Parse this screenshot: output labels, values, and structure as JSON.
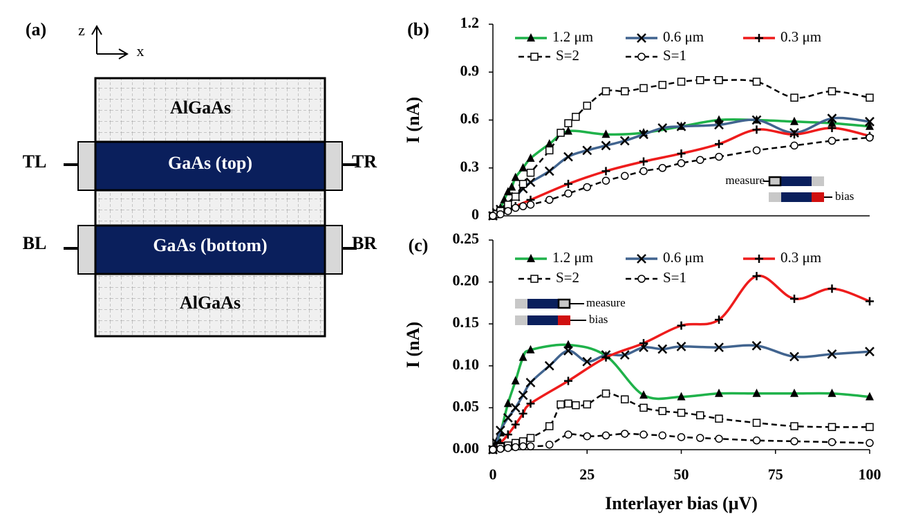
{
  "diagram": {
    "panel": "(a)",
    "axis_z": "z",
    "axis_x": "x",
    "layers": [
      "AlGaAs",
      "GaAs (top)",
      "GaAs (bottom)",
      "AlGaAs"
    ],
    "contacts": [
      "TL",
      "TR",
      "BL",
      "BR"
    ]
  },
  "chart_data": [
    {
      "type": "line",
      "panel": "(b)",
      "ylabel": "I (nA)",
      "xlim": [
        0,
        100
      ],
      "ylim": [
        0,
        1.2
      ],
      "yticks": [
        0,
        0.3,
        0.6,
        0.9,
        1.2
      ],
      "annotations": [
        "measure",
        "bias"
      ],
      "series": [
        {
          "name": "1.2 μm",
          "color": "#1fb24a",
          "marker": "triangle",
          "dashed": false,
          "x": [
            0,
            1,
            2,
            3,
            4,
            5,
            6,
            8,
            10,
            15,
            20,
            30,
            40,
            50,
            60,
            70,
            80,
            90,
            100
          ],
          "values": [
            0,
            0.02,
            0.05,
            0.1,
            0.15,
            0.18,
            0.24,
            0.3,
            0.36,
            0.45,
            0.53,
            0.51,
            0.52,
            0.56,
            0.6,
            0.6,
            0.59,
            0.58,
            0.56
          ]
        },
        {
          "name": "0.6 μm",
          "color": "#41648f",
          "marker": "x",
          "dashed": false,
          "x": [
            0,
            1,
            2,
            4,
            6,
            8,
            10,
            15,
            20,
            25,
            30,
            35,
            40,
            45,
            50,
            60,
            70,
            80,
            90,
            100
          ],
          "values": [
            0,
            0.02,
            0.04,
            0.08,
            0.12,
            0.17,
            0.21,
            0.28,
            0.37,
            0.41,
            0.44,
            0.47,
            0.51,
            0.55,
            0.56,
            0.57,
            0.6,
            0.52,
            0.61,
            0.59
          ]
        },
        {
          "name": "0.3 μm",
          "color": "#ee1c1c",
          "marker": "plus",
          "dashed": false,
          "x": [
            0,
            2,
            4,
            6,
            10,
            20,
            30,
            40,
            50,
            60,
            70,
            80,
            90,
            100
          ],
          "values": [
            0,
            0.02,
            0.04,
            0.06,
            0.1,
            0.2,
            0.28,
            0.34,
            0.39,
            0.45,
            0.54,
            0.51,
            0.55,
            0.5
          ]
        },
        {
          "name": "S=2",
          "color": "#000000",
          "marker": "square",
          "dashed": true,
          "x": [
            0,
            1,
            2,
            4,
            6,
            8,
            10,
            15,
            18,
            20,
            22,
            25,
            30,
            35,
            40,
            45,
            50,
            55,
            60,
            70,
            80,
            90,
            100
          ],
          "values": [
            0,
            0.01,
            0.03,
            0.07,
            0.12,
            0.2,
            0.27,
            0.41,
            0.52,
            0.58,
            0.62,
            0.69,
            0.78,
            0.78,
            0.8,
            0.82,
            0.84,
            0.85,
            0.85,
            0.84,
            0.74,
            0.78,
            0.74
          ]
        },
        {
          "name": "S=1",
          "color": "#000000",
          "marker": "circle",
          "dashed": true,
          "x": [
            0,
            2,
            4,
            6,
            8,
            10,
            15,
            20,
            25,
            30,
            35,
            40,
            45,
            50,
            55,
            60,
            70,
            80,
            90,
            100
          ],
          "values": [
            0,
            0.01,
            0.03,
            0.05,
            0.06,
            0.07,
            0.1,
            0.14,
            0.18,
            0.22,
            0.25,
            0.28,
            0.3,
            0.33,
            0.35,
            0.37,
            0.41,
            0.44,
            0.47,
            0.49
          ]
        }
      ]
    },
    {
      "type": "line",
      "panel": "(c)",
      "ylabel": "I (nA)",
      "xlabel": "Interlayer bias (μV)",
      "xlim": [
        0,
        100
      ],
      "xticks": [
        0,
        25,
        50,
        75,
        100
      ],
      "ylim": [
        0,
        0.25
      ],
      "yticks": [
        {
          "value": 0,
          "label": "0.00"
        },
        {
          "value": 0.05,
          "label": "0.05"
        },
        {
          "value": 0.1,
          "label": "0.10"
        },
        {
          "value": 0.15,
          "label": "0.15"
        },
        {
          "value": 0.2,
          "label": "0.20"
        },
        {
          "value": 0.25,
          "label": "0.25"
        }
      ],
      "annotations": [
        "measure",
        "bias"
      ],
      "series": [
        {
          "name": "1.2 μm",
          "color": "#1fb24a",
          "marker": "triangle",
          "dashed": false,
          "x": [
            0,
            1,
            2,
            4,
            6,
            8,
            10,
            20,
            30,
            40,
            50,
            60,
            70,
            80,
            90,
            100
          ],
          "values": [
            0,
            0.01,
            0.02,
            0.055,
            0.082,
            0.11,
            0.119,
            0.125,
            0.112,
            0.065,
            0.063,
            0.067,
            0.067,
            0.067,
            0.067,
            0.063
          ]
        },
        {
          "name": "0.6 μm",
          "color": "#41648f",
          "marker": "x",
          "dashed": false,
          "x": [
            0,
            1,
            2,
            4,
            6,
            8,
            10,
            15,
            20,
            25,
            30,
            35,
            40,
            45,
            50,
            60,
            70,
            80,
            90,
            100
          ],
          "values": [
            0,
            0.008,
            0.023,
            0.038,
            0.05,
            0.065,
            0.08,
            0.1,
            0.118,
            0.105,
            0.113,
            0.113,
            0.122,
            0.12,
            0.123,
            0.122,
            0.124,
            0.111,
            0.114,
            0.117
          ]
        },
        {
          "name": "0.3 μm",
          "color": "#ee1c1c",
          "marker": "plus",
          "dashed": false,
          "x": [
            0,
            2,
            4,
            6,
            8,
            10,
            20,
            30,
            40,
            50,
            60,
            70,
            80,
            90,
            100
          ],
          "values": [
            0,
            0.008,
            0.018,
            0.03,
            0.043,
            0.055,
            0.082,
            0.11,
            0.127,
            0.148,
            0.155,
            0.207,
            0.18,
            0.192,
            0.177
          ]
        },
        {
          "name": "S=2",
          "color": "#000000",
          "marker": "square",
          "dashed": true,
          "x": [
            0,
            2,
            4,
            6,
            8,
            10,
            15,
            18,
            20,
            22,
            25,
            30,
            35,
            40,
            45,
            50,
            55,
            60,
            70,
            80,
            90,
            100
          ],
          "values": [
            0,
            0.003,
            0.005,
            0.008,
            0.01,
            0.014,
            0.028,
            0.054,
            0.055,
            0.053,
            0.054,
            0.067,
            0.06,
            0.05,
            0.046,
            0.044,
            0.041,
            0.037,
            0.032,
            0.028,
            0.027,
            0.027
          ]
        },
        {
          "name": "S=1",
          "color": "#000000",
          "marker": "circle",
          "dashed": true,
          "x": [
            0,
            2,
            4,
            6,
            8,
            10,
            15,
            20,
            25,
            30,
            35,
            40,
            45,
            50,
            55,
            60,
            70,
            80,
            90,
            100
          ],
          "values": [
            0,
            0.001,
            0.002,
            0.003,
            0.004,
            0.004,
            0.006,
            0.018,
            0.016,
            0.017,
            0.019,
            0.018,
            0.017,
            0.015,
            0.014,
            0.013,
            0.011,
            0.01,
            0.009,
            0.008
          ]
        }
      ]
    }
  ]
}
